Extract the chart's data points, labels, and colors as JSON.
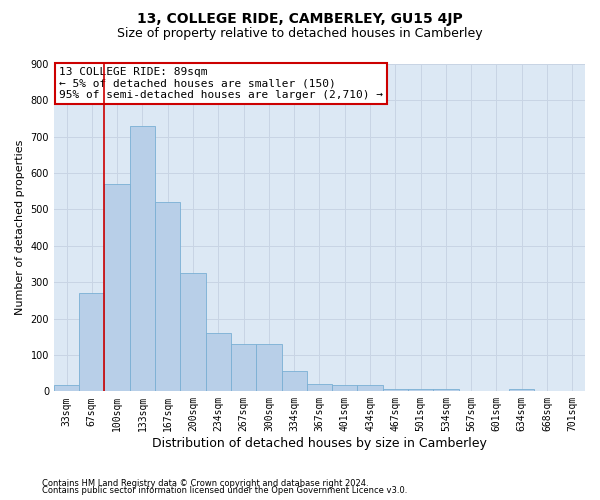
{
  "title": "13, COLLEGE RIDE, CAMBERLEY, GU15 4JP",
  "subtitle": "Size of property relative to detached houses in Camberley",
  "xlabel": "Distribution of detached houses by size in Camberley",
  "ylabel": "Number of detached properties",
  "categories": [
    "33sqm",
    "67sqm",
    "100sqm",
    "133sqm",
    "167sqm",
    "200sqm",
    "234sqm",
    "267sqm",
    "300sqm",
    "334sqm",
    "367sqm",
    "401sqm",
    "434sqm",
    "467sqm",
    "501sqm",
    "534sqm",
    "567sqm",
    "601sqm",
    "634sqm",
    "668sqm",
    "701sqm"
  ],
  "values": [
    18,
    270,
    570,
    730,
    520,
    325,
    160,
    130,
    130,
    55,
    20,
    18,
    18,
    6,
    6,
    6,
    0,
    0,
    6,
    0,
    2
  ],
  "bar_color": "#b8cfe8",
  "bar_edge_color": "#7aafd4",
  "grid_color": "#c8d4e4",
  "background_color": "#dce8f4",
  "vline_x": 1.5,
  "vline_color": "#cc0000",
  "annotation_text": "13 COLLEGE RIDE: 89sqm\n← 5% of detached houses are smaller (150)\n95% of semi-detached houses are larger (2,710) →",
  "annotation_box_color": "#cc0000",
  "ylim": [
    0,
    900
  ],
  "yticks": [
    0,
    100,
    200,
    300,
    400,
    500,
    600,
    700,
    800,
    900
  ],
  "footer1": "Contains HM Land Registry data © Crown copyright and database right 2024.",
  "footer2": "Contains public sector information licensed under the Open Government Licence v3.0.",
  "title_fontsize": 10,
  "subtitle_fontsize": 9,
  "tick_fontsize": 7,
  "ylabel_fontsize": 8,
  "xlabel_fontsize": 9,
  "ann_fontsize": 8
}
